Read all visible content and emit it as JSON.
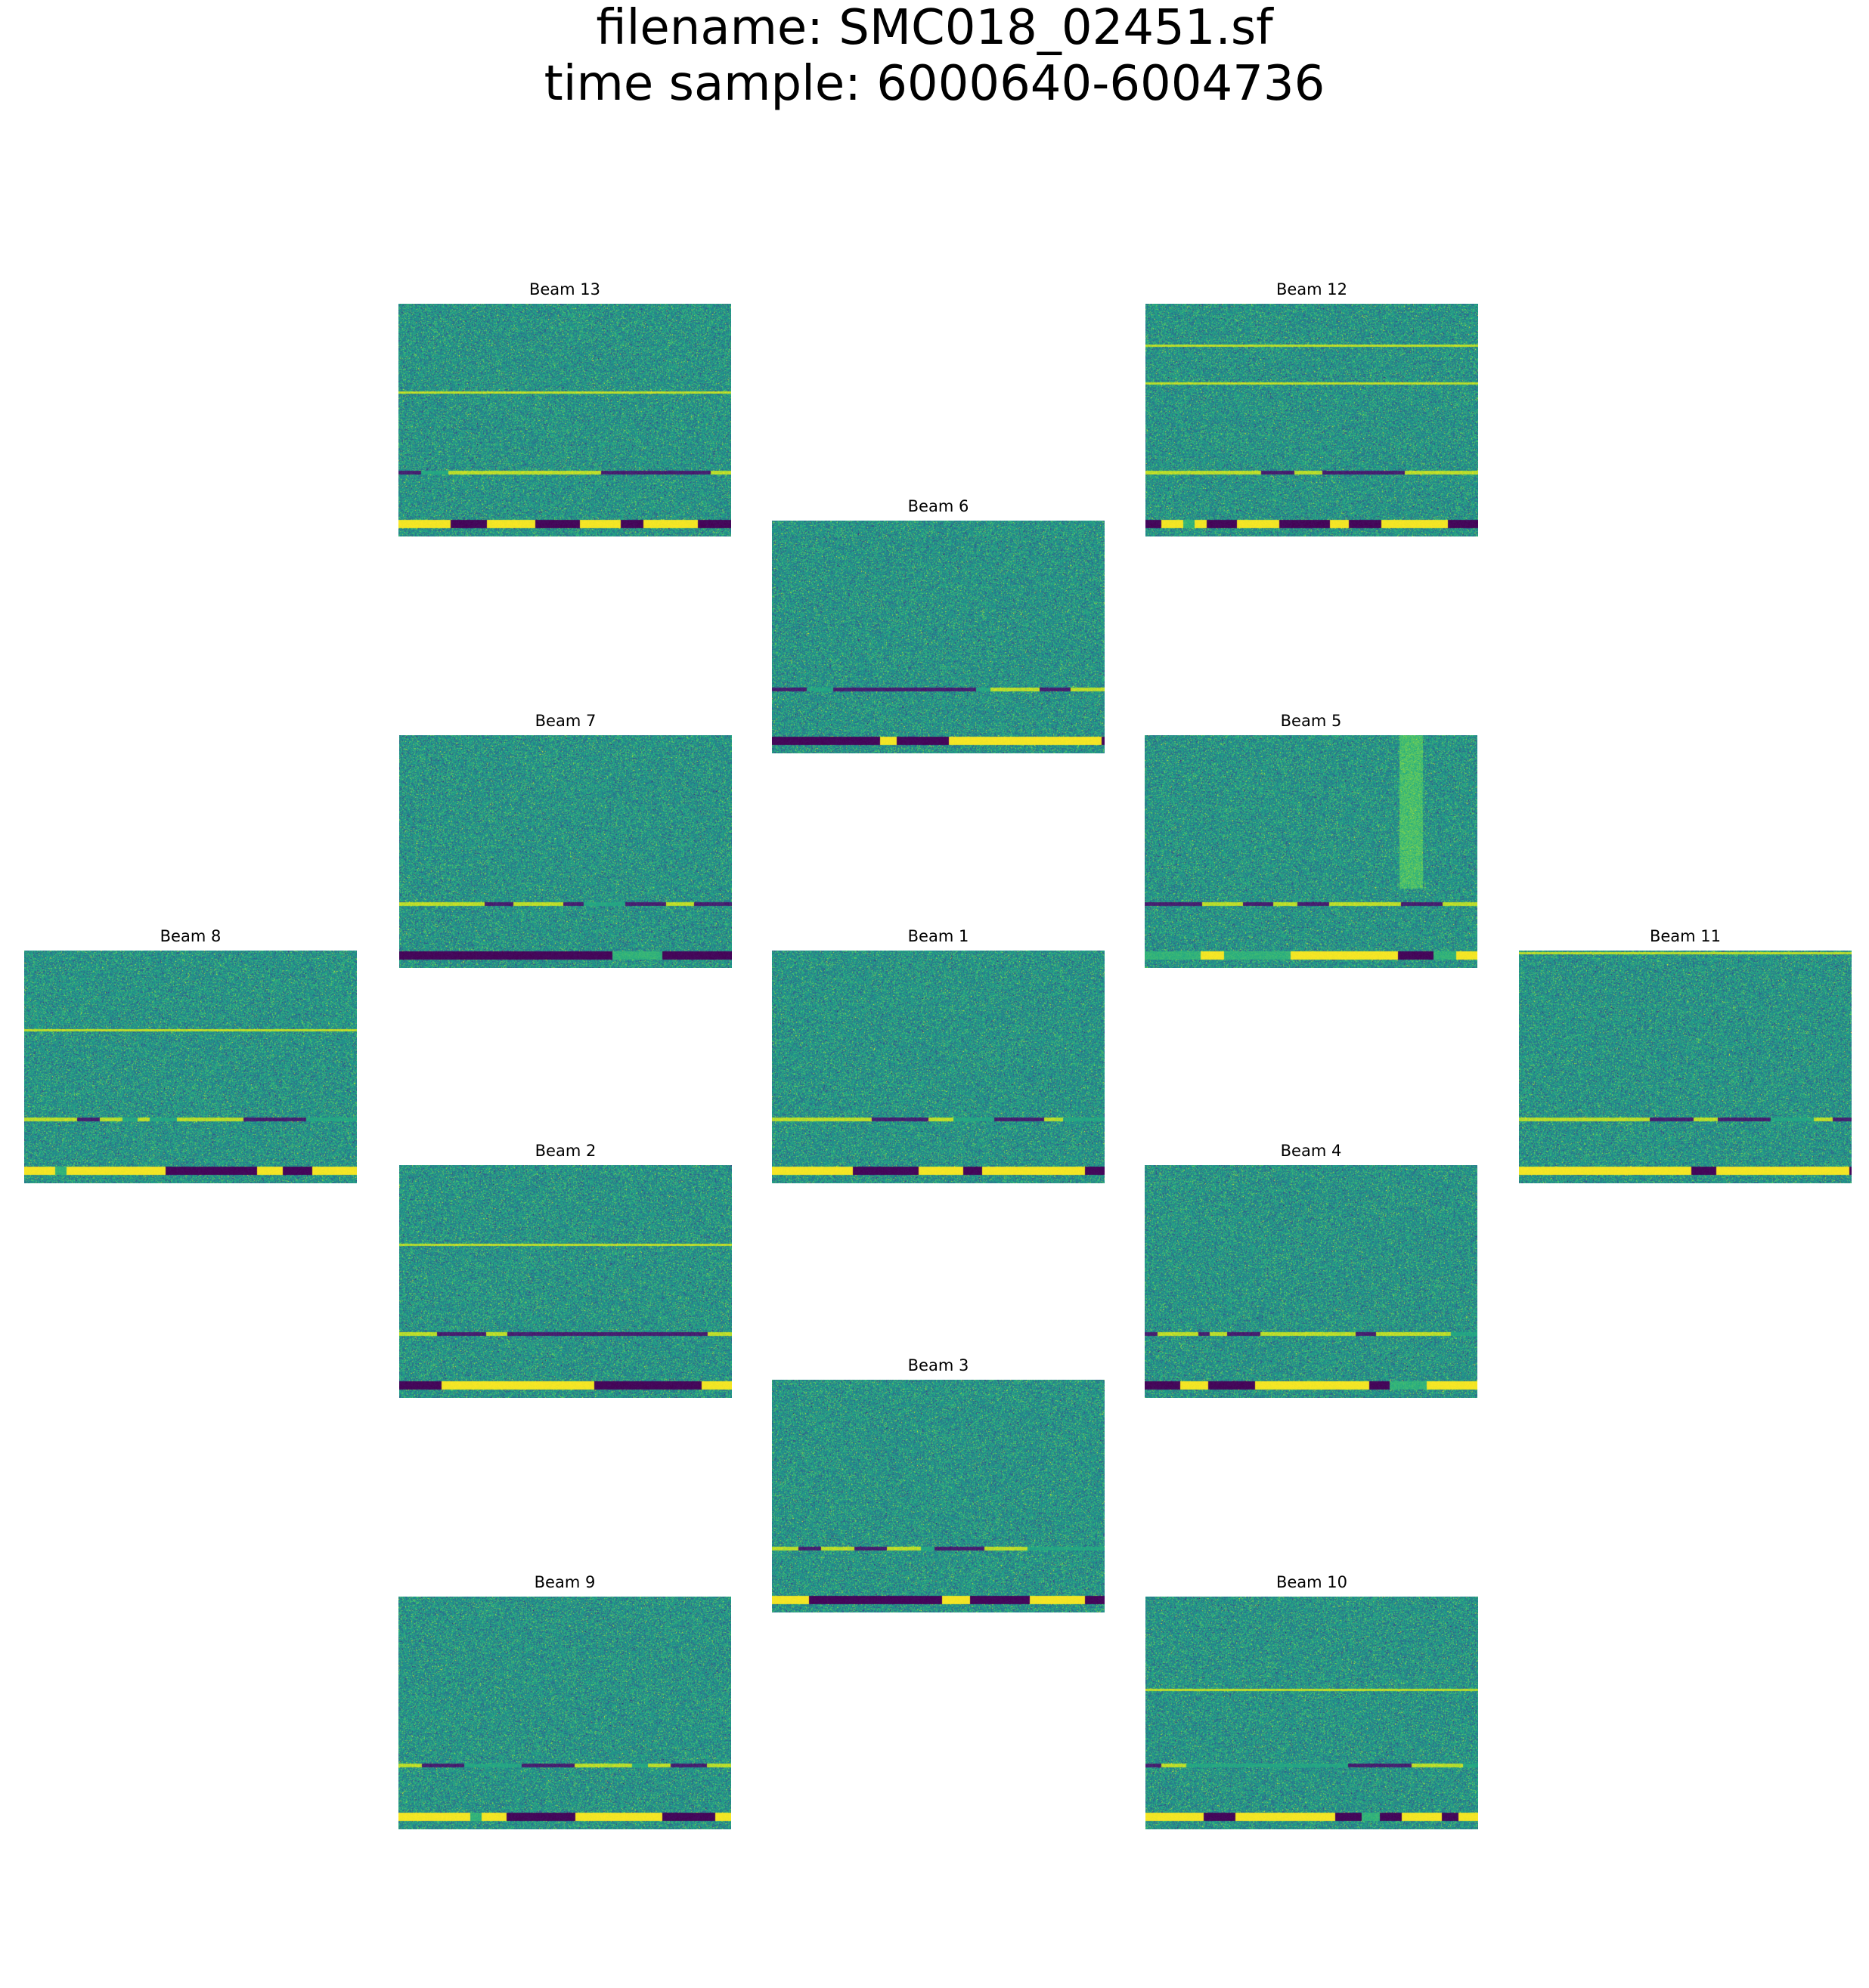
{
  "title": {
    "line1": "filename: SMC018_02451.sf",
    "line2": "time sample: 6000640-6004736"
  },
  "colormap": {
    "name": "viridis",
    "low": "#440154",
    "mid": "#21918c",
    "high": "#fde725"
  },
  "chart_data": {
    "type": "heatmap",
    "title": "filename: SMC018_02451.sf\ntime sample: 6000640-6004736",
    "layout": "13-beam hexagonal grid of waterfall images",
    "axes_visible": false,
    "grid": false,
    "legend": "none",
    "beams": [
      {
        "id": "beam13",
        "label": "Beam 13",
        "persistent_rfi_rows": [
          0.38
        ]
      },
      {
        "id": "beam12",
        "label": "Beam 12",
        "persistent_rfi_rows": [
          0.18,
          0.34
        ]
      },
      {
        "id": "beam6",
        "label": "Beam 6",
        "persistent_rfi_rows": []
      },
      {
        "id": "beam7",
        "label": "Beam 7",
        "persistent_rfi_rows": []
      },
      {
        "id": "beam5",
        "label": "Beam 5",
        "persistent_rfi_rows": [],
        "broadband_feature_column": 0.8
      },
      {
        "id": "beam8",
        "label": "Beam 8",
        "persistent_rfi_rows": [
          0.34
        ]
      },
      {
        "id": "beam1",
        "label": "Beam 1",
        "persistent_rfi_rows": []
      },
      {
        "id": "beam11",
        "label": "Beam 11",
        "persistent_rfi_rows": [
          0.01
        ]
      },
      {
        "id": "beam2",
        "label": "Beam 2",
        "persistent_rfi_rows": [
          0.34
        ]
      },
      {
        "id": "beam4",
        "label": "Beam 4",
        "persistent_rfi_rows": []
      },
      {
        "id": "beam3",
        "label": "Beam 3",
        "persistent_rfi_rows": []
      },
      {
        "id": "beam9",
        "label": "Beam 9",
        "persistent_rfi_rows": []
      },
      {
        "id": "beam10",
        "label": "Beam 10",
        "persistent_rfi_rows": [
          0.4
        ]
      }
    ]
  }
}
